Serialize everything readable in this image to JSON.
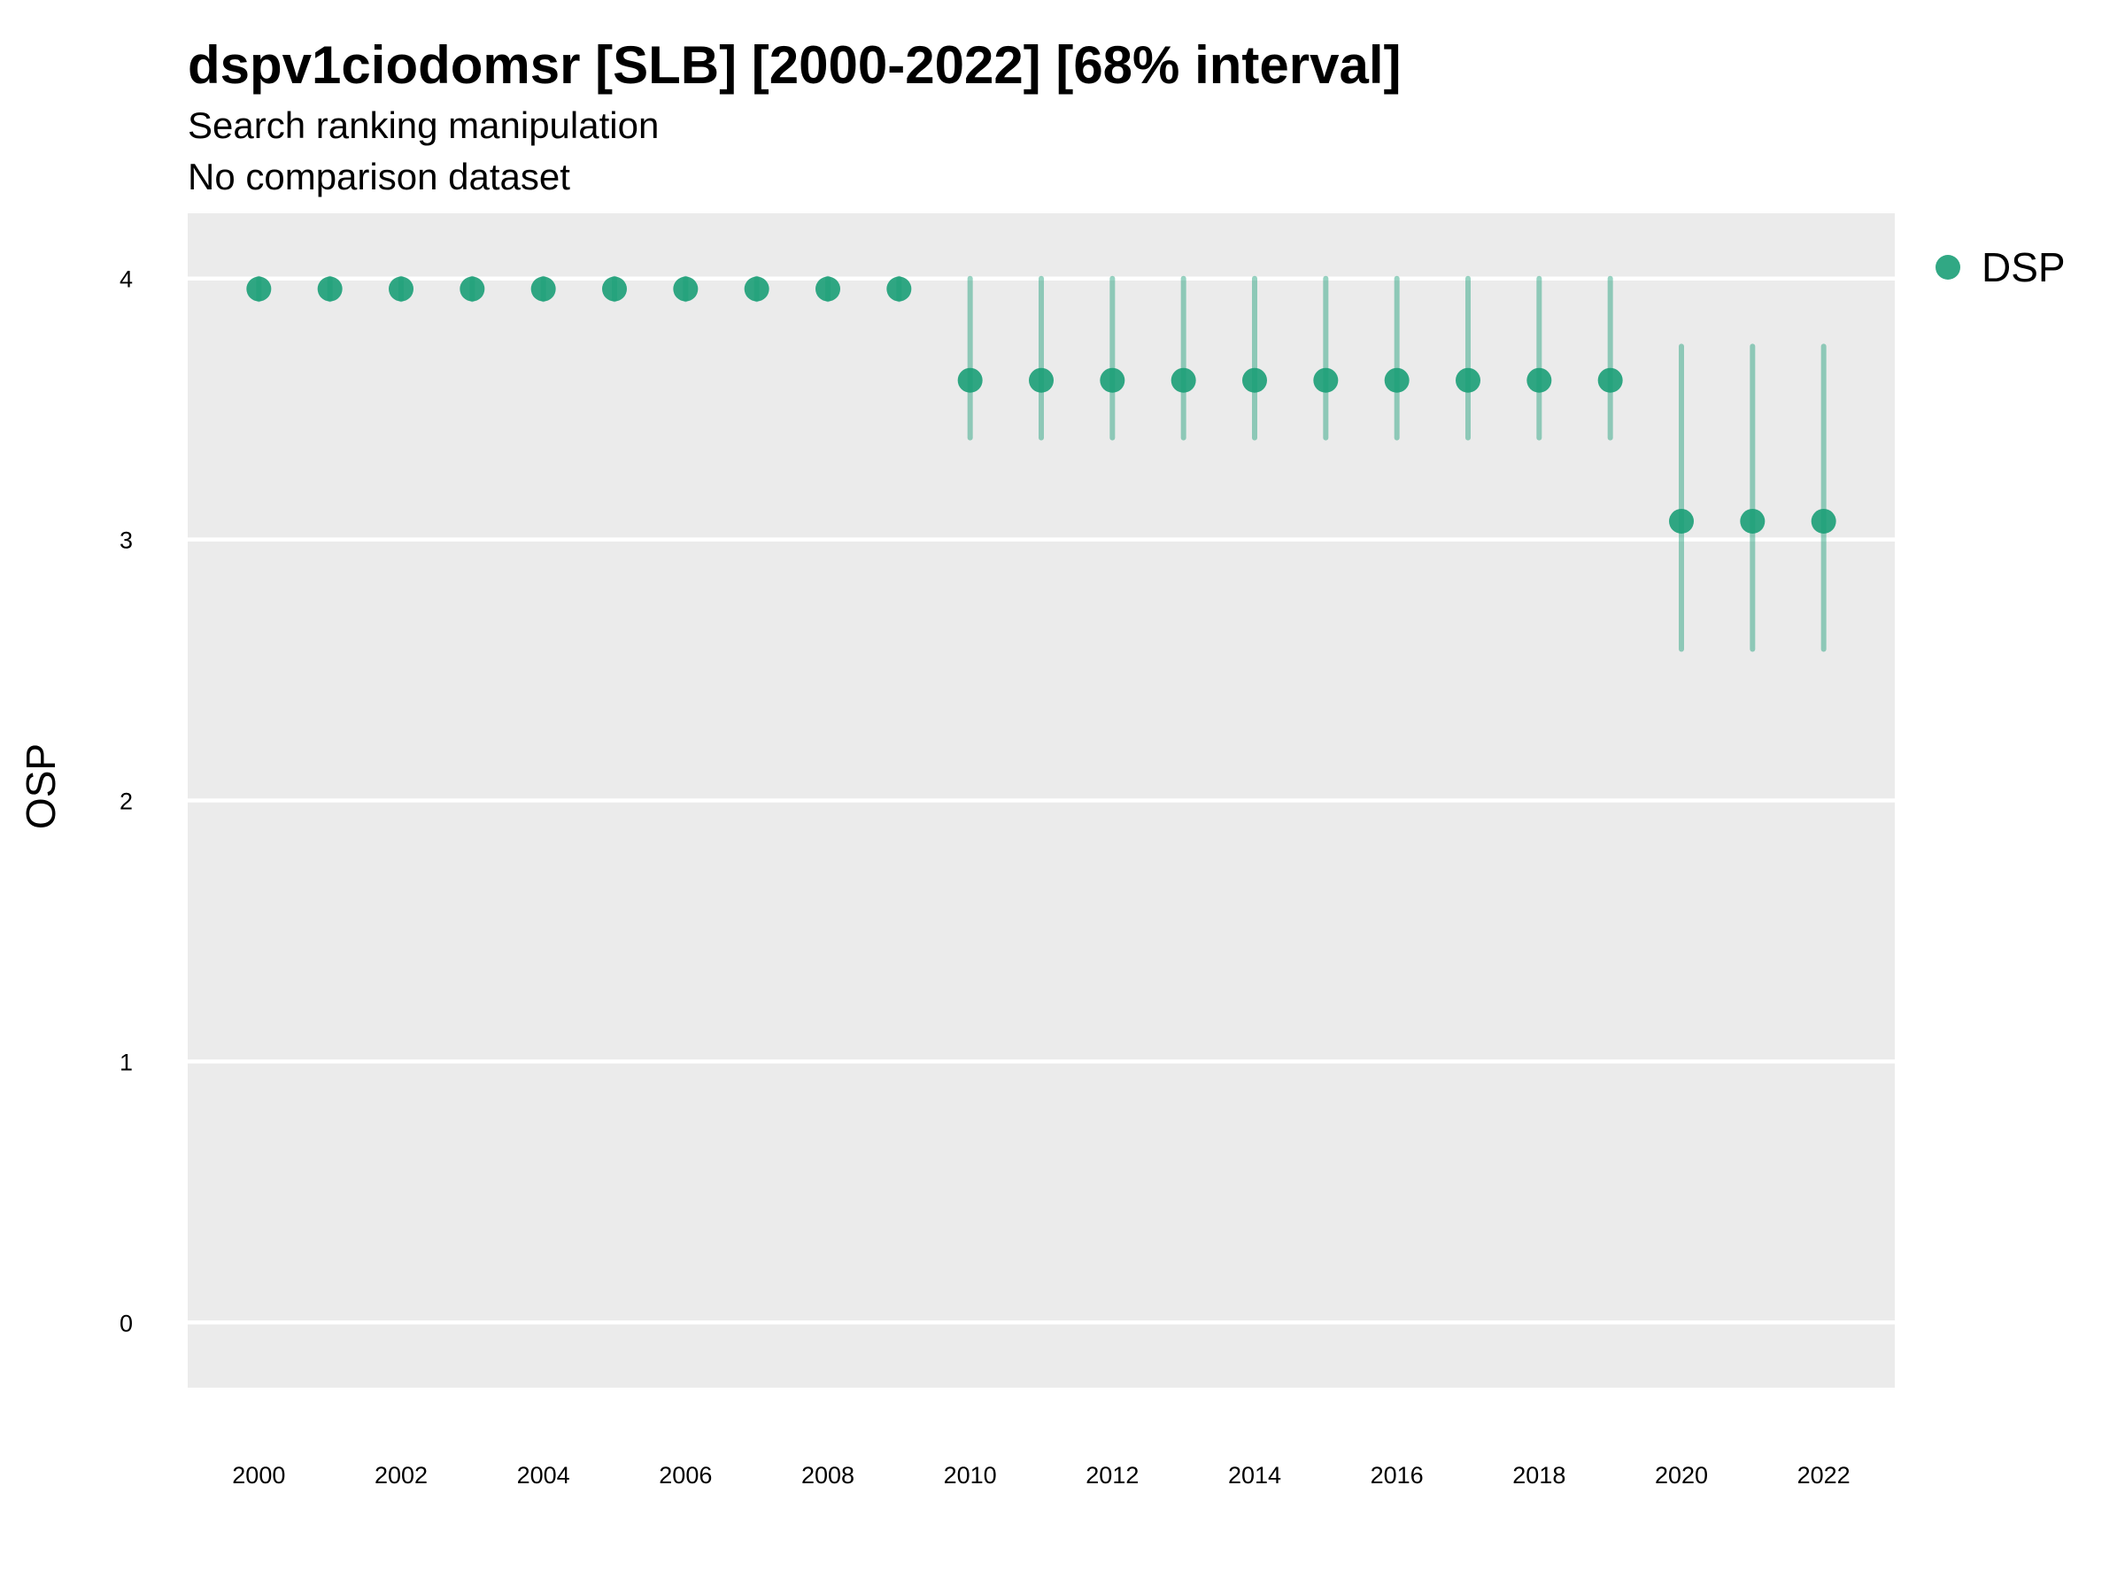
{
  "chart_data": {
    "type": "scatter",
    "title": "dspv1ciodomsr [SLB] [2000-2022] [68% interval]",
    "subtitle": "Search ranking manipulation",
    "caption_line": "No comparison dataset",
    "xlabel": "",
    "ylabel": "OSP",
    "xlim": [
      1999,
      2023
    ],
    "ylim": [
      -0.25,
      4.25
    ],
    "x_ticks": [
      "2000",
      "2002",
      "2004",
      "2006",
      "2008",
      "2010",
      "2012",
      "2014",
      "2016",
      "2018",
      "2020",
      "2022"
    ],
    "y_ticks": [
      "0",
      "1",
      "2",
      "3",
      "4"
    ],
    "grid": true,
    "legend_position": "right",
    "colors": {
      "point": "#1b9e77",
      "panel": "#ebebeb",
      "grid": "#ffffff"
    },
    "series": [
      {
        "name": "DSP",
        "points": [
          {
            "x": 2000,
            "y": 3.96,
            "lo": 3.92,
            "hi": 4.0
          },
          {
            "x": 2001,
            "y": 3.96,
            "lo": 3.92,
            "hi": 4.0
          },
          {
            "x": 2002,
            "y": 3.96,
            "lo": 3.92,
            "hi": 4.0
          },
          {
            "x": 2003,
            "y": 3.96,
            "lo": 3.92,
            "hi": 4.0
          },
          {
            "x": 2004,
            "y": 3.96,
            "lo": 3.92,
            "hi": 4.0
          },
          {
            "x": 2005,
            "y": 3.96,
            "lo": 3.92,
            "hi": 4.0
          },
          {
            "x": 2006,
            "y": 3.96,
            "lo": 3.92,
            "hi": 4.0
          },
          {
            "x": 2007,
            "y": 3.96,
            "lo": 3.92,
            "hi": 4.0
          },
          {
            "x": 2008,
            "y": 3.96,
            "lo": 3.92,
            "hi": 4.0
          },
          {
            "x": 2009,
            "y": 3.96,
            "lo": 3.92,
            "hi": 4.0
          },
          {
            "x": 2010,
            "y": 3.61,
            "lo": 3.39,
            "hi": 4.0
          },
          {
            "x": 2011,
            "y": 3.61,
            "lo": 3.39,
            "hi": 4.0
          },
          {
            "x": 2012,
            "y": 3.61,
            "lo": 3.39,
            "hi": 4.0
          },
          {
            "x": 2013,
            "y": 3.61,
            "lo": 3.39,
            "hi": 4.0
          },
          {
            "x": 2014,
            "y": 3.61,
            "lo": 3.39,
            "hi": 4.0
          },
          {
            "x": 2015,
            "y": 3.61,
            "lo": 3.39,
            "hi": 4.0
          },
          {
            "x": 2016,
            "y": 3.61,
            "lo": 3.39,
            "hi": 4.0
          },
          {
            "x": 2017,
            "y": 3.61,
            "lo": 3.39,
            "hi": 4.0
          },
          {
            "x": 2018,
            "y": 3.61,
            "lo": 3.39,
            "hi": 4.0
          },
          {
            "x": 2019,
            "y": 3.61,
            "lo": 3.39,
            "hi": 4.0
          },
          {
            "x": 2020,
            "y": 3.07,
            "lo": 2.58,
            "hi": 3.74
          },
          {
            "x": 2021,
            "y": 3.07,
            "lo": 2.58,
            "hi": 3.74
          },
          {
            "x": 2022,
            "y": 3.07,
            "lo": 2.58,
            "hi": 3.74
          }
        ]
      }
    ]
  }
}
